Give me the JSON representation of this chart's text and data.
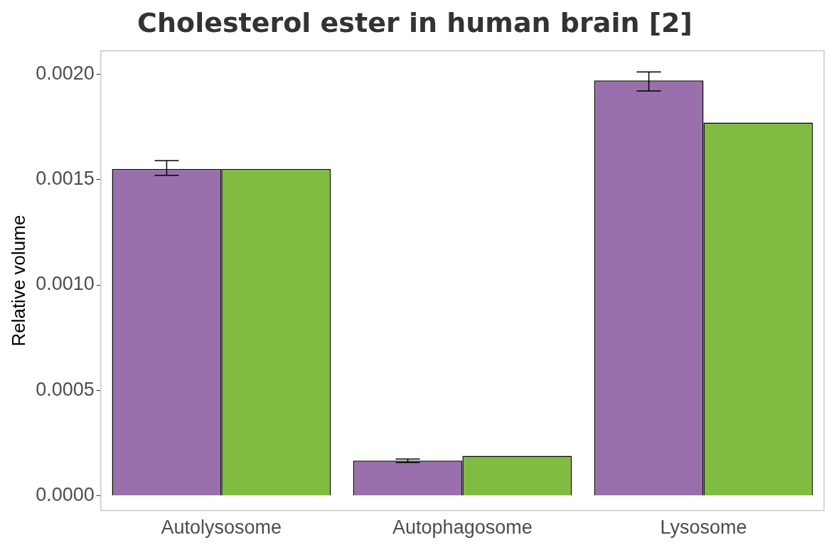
{
  "chart_data": {
    "type": "bar",
    "title": "Cholesterol ester in human brain [2]",
    "ylabel": "Relative volume",
    "categories": [
      "Autolysosome",
      "Autophagosome",
      "Lysosome"
    ],
    "series": [
      {
        "color": "#9970ab",
        "values": [
          0.00155,
          0.000167,
          0.00197
        ],
        "errors": [
          [
            0.00152,
            0.00159
          ],
          [
            0.000159,
            0.000175
          ],
          [
            0.00192,
            0.00201
          ]
        ]
      },
      {
        "color": "#80bc42",
        "values": [
          0.00155,
          0.00019,
          0.00177
        ]
      }
    ],
    "ylim": [
      -7e-05,
      0.00211
    ],
    "yticks": [
      {
        "value": 0,
        "label": "0.0000"
      },
      {
        "value": 0.0005,
        "label": "0.0005"
      },
      {
        "value": 0.001,
        "label": "0.0010"
      },
      {
        "value": 0.0015,
        "label": "0.0015"
      },
      {
        "value": 0.002,
        "label": "0.0020"
      }
    ],
    "grid": false,
    "legend": false
  }
}
